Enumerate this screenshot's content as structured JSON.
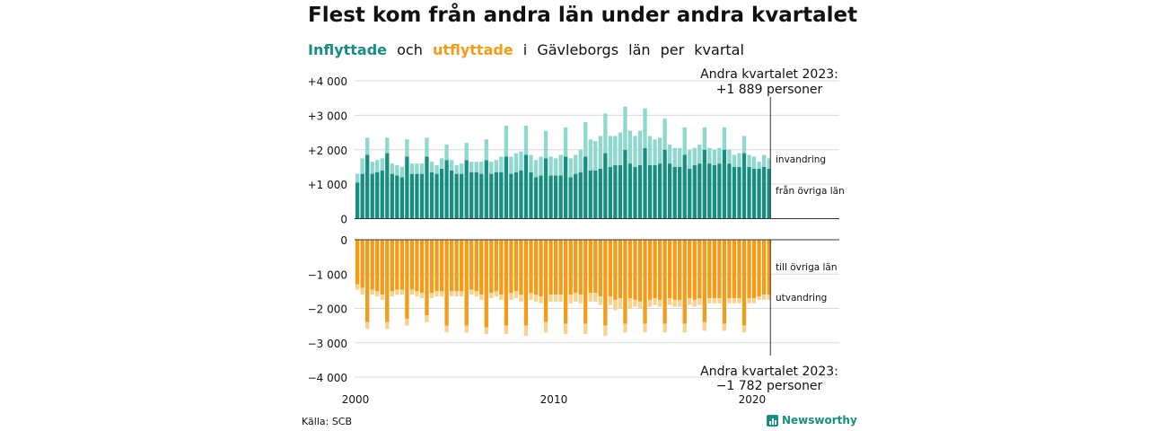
{
  "title": "Flest kom från andra län under andra kvartalet",
  "subtitle": {
    "in_label": "Inflyttade",
    "conj": "och",
    "out_label": "utflyttade",
    "rest_1": "i",
    "rest_2": "Gävleborgs",
    "rest_3": "län",
    "rest_4": "per",
    "rest_5": "kvartal"
  },
  "source": "Källa: SCB",
  "brand": "Newsworthy",
  "icons": {
    "brand": "newsworthy-logo-icon"
  },
  "colors": {
    "in_lan": "#168f80",
    "in_invandring": "#8ed8cd",
    "out_lan": "#f39c18",
    "out_utvandring": "#f8d290",
    "grid": "#d9d9d9",
    "axis": "#333333"
  },
  "chart_data": {
    "type": "bar",
    "stacked": true,
    "x_ticks": [
      "2000",
      "2010",
      "2020"
    ],
    "x_range": [
      2000,
      2023.5
    ],
    "upper": {
      "ylim": [
        0,
        4000
      ],
      "y_ticks": [
        "0",
        "+1 000",
        "+2 000",
        "+3 000",
        "+4 000"
      ],
      "y_tick_values": [
        0,
        1000,
        2000,
        3000,
        4000
      ],
      "series": [
        {
          "name": "från övriga län",
          "values": [
            1050,
            1300,
            1850,
            1300,
            1350,
            1400,
            1900,
            1300,
            1250,
            1200,
            1800,
            1300,
            1300,
            1300,
            1800,
            1350,
            1300,
            1450,
            1700,
            1400,
            1300,
            1300,
            1700,
            1350,
            1350,
            1300,
            1700,
            1300,
            1350,
            1350,
            1800,
            1300,
            1350,
            1400,
            1850,
            1350,
            1200,
            1250,
            1750,
            1250,
            1250,
            1250,
            1800,
            1200,
            1300,
            1350,
            1800,
            1400,
            1400,
            1450,
            1900,
            1500,
            1550,
            1550,
            2000,
            1600,
            1500,
            1550,
            2050,
            1550,
            1550,
            1600,
            2000,
            1600,
            1500,
            1500,
            1850,
            1450,
            1550,
            1600,
            2000,
            1600,
            1550,
            1600,
            2000,
            1600,
            1500,
            1500,
            1900,
            1500,
            1450,
            1450,
            1500,
            1450
          ]
        },
        {
          "name": "invandring",
          "values": [
            250,
            450,
            500,
            350,
            350,
            350,
            450,
            300,
            300,
            300,
            500,
            300,
            300,
            300,
            550,
            300,
            250,
            300,
            450,
            300,
            250,
            300,
            500,
            300,
            300,
            350,
            600,
            350,
            350,
            450,
            900,
            500,
            550,
            550,
            850,
            500,
            500,
            550,
            800,
            550,
            500,
            600,
            850,
            550,
            550,
            650,
            1000,
            900,
            850,
            950,
            1150,
            900,
            850,
            950,
            1250,
            950,
            900,
            1000,
            1150,
            850,
            750,
            750,
            900,
            550,
            550,
            550,
            800,
            550,
            500,
            550,
            650,
            450,
            450,
            450,
            650,
            400,
            350,
            400,
            500,
            350,
            350,
            200,
            350,
            300
          ]
        }
      ],
      "annotation": {
        "line1": "Andra kvartalet 2023:",
        "line2": "+1 889 personer",
        "value": 1889
      },
      "labels": [
        "invandring",
        "från övriga län"
      ]
    },
    "lower": {
      "ylim": [
        -4000,
        0
      ],
      "y_ticks": [
        "0",
        "−1 000",
        "−2 000",
        "−3 000",
        "−4 000"
      ],
      "y_tick_values": [
        0,
        -1000,
        -2000,
        -3000,
        -4000
      ],
      "series": [
        {
          "name": "till övriga län",
          "values": [
            -1300,
            -1400,
            -2400,
            -1450,
            -1500,
            -1600,
            -2400,
            -1500,
            -1450,
            -1450,
            -2300,
            -1450,
            -1500,
            -1550,
            -2200,
            -1550,
            -1500,
            -1500,
            -2500,
            -1500,
            -1500,
            -1500,
            -2500,
            -1450,
            -1500,
            -1600,
            -2550,
            -1550,
            -1500,
            -1600,
            -2500,
            -1550,
            -1500,
            -1600,
            -2500,
            -1550,
            -1600,
            -1650,
            -2400,
            -1600,
            -1600,
            -1600,
            -2450,
            -1600,
            -1550,
            -1600,
            -2450,
            -1550,
            -1550,
            -1650,
            -2500,
            -1650,
            -1750,
            -1700,
            -2450,
            -1700,
            -1750,
            -1800,
            -2450,
            -1750,
            -1700,
            -1750,
            -2450,
            -1700,
            -1750,
            -1750,
            -2450,
            -1700,
            -1750,
            -1700,
            -2400,
            -1700,
            -1700,
            -1700,
            -2450,
            -1700,
            -1700,
            -1700,
            -2500,
            -1700,
            -1700,
            -1650,
            -1600,
            -1600
          ]
        },
        {
          "name": "utvandring",
          "values": [
            -150,
            -200,
            -200,
            -150,
            -150,
            -150,
            -200,
            -150,
            -150,
            -150,
            -200,
            -150,
            -150,
            -150,
            -200,
            -150,
            -150,
            -150,
            -200,
            -150,
            -150,
            -150,
            -200,
            -150,
            -150,
            -150,
            -200,
            -150,
            -150,
            -150,
            -250,
            -200,
            -200,
            -200,
            -300,
            -200,
            -200,
            -200,
            -300,
            -200,
            -200,
            -200,
            -300,
            -250,
            -250,
            -250,
            -300,
            -250,
            -250,
            -250,
            -300,
            -250,
            -300,
            -300,
            -250,
            -300,
            -200,
            -200,
            -250,
            -200,
            -200,
            -200,
            -250,
            -200,
            -200,
            -200,
            -250,
            -200,
            -200,
            -200,
            -250,
            -150,
            -150,
            -150,
            -200,
            -150,
            -150,
            -150,
            -200,
            -150,
            -150,
            -100,
            -150,
            -150
          ]
        }
      ],
      "annotation": {
        "line1": "Andra kvartalet 2023:",
        "line2": "−1 782 personer",
        "value": -1782
      },
      "labels": [
        "till övriga län",
        "utvandring"
      ]
    }
  }
}
